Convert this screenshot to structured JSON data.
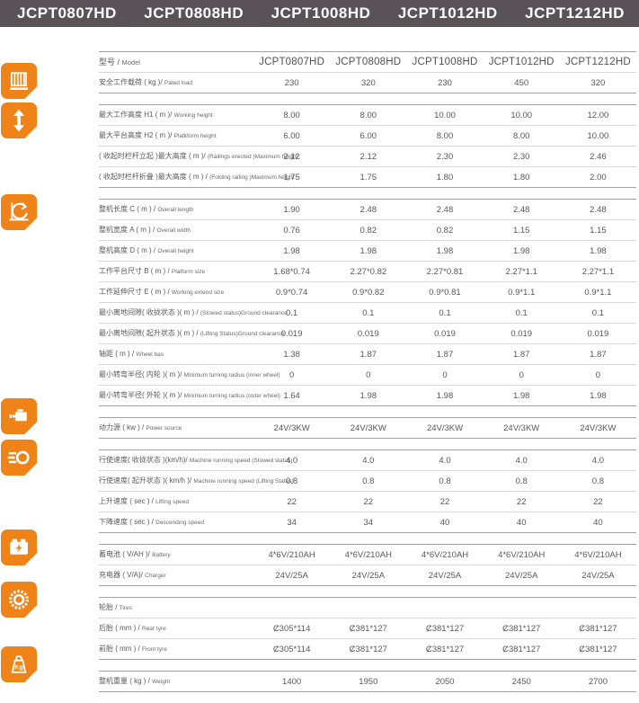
{
  "colors": {
    "accent_orange": "#EF8318",
    "topbar_gray": "#595357"
  },
  "topbar": {
    "models": [
      "JCPT0807HD",
      "JCPT0808HD",
      "JCPT1008HD",
      "JCPT1012HD",
      "JCPT1212HD"
    ]
  },
  "table": {
    "sections": [
      {
        "name": "model-load",
        "icon": "platform-railing-icon",
        "rows": [
          {
            "label_zh": "型号 / ",
            "label_en": "Model",
            "values": [
              "JCPT0807HD",
              "JCPT0808HD",
              "JCPT1008HD",
              "JCPT1012HD",
              "JCPT1212HD"
            ]
          },
          {
            "label_zh": "安全工作载荷 ( kg )/ ",
            "label_en": "Pated load",
            "values": [
              "230",
              "320",
              "230",
              "450",
              "320"
            ]
          }
        ]
      },
      {
        "name": "heights",
        "icon": "height-range-icon",
        "rows": [
          {
            "label_zh": "最大工作高度 H1 ( m )/ ",
            "label_en": "Working height",
            "values": [
              "8.00",
              "8.00",
              "10.00",
              "10.00",
              "12.00"
            ]
          },
          {
            "label_zh": "最大平台高度 H2 ( m )/ ",
            "label_en": "Platkform height",
            "values": [
              "6.00",
              "6.00",
              "8.00",
              "8.00",
              "10.00"
            ]
          },
          {
            "label_zh": "( 收起时栏杆立起 )最大高度 ( m )/ ",
            "label_en": "(Railings erected )Maximum height",
            "values": [
              "2.12",
              "2.12",
              "2.30",
              "2.30",
              "2.46"
            ]
          },
          {
            "label_zh": "( 收起时栏杆折叠 )最大高度 ( m ) / ",
            "label_en": "(Folding railing )Maximum height",
            "values": [
              "1.75",
              "1.75",
              "1.80",
              "1.80",
              "2.00"
            ]
          }
        ]
      },
      {
        "name": "dimensions",
        "icon": "dimensions-icon",
        "rows": [
          {
            "label_zh": "整机长度 C ( m ) / ",
            "label_en": "Overall length",
            "values": [
              "1.90",
              "2.48",
              "2.48",
              "2.48",
              "2.48"
            ]
          },
          {
            "label_zh": "整机宽度 A ( m ) / ",
            "label_en": "Overall width",
            "values": [
              "0.76",
              "0.82",
              "0.82",
              "1.15",
              "1.15"
            ]
          },
          {
            "label_zh": "整机高度 D ( m ) / ",
            "label_en": "Overall height",
            "values": [
              "1.98",
              "1.98",
              "1.98",
              "1.98",
              "1.98"
            ]
          },
          {
            "label_zh": "工作平台尺寸 B ( m ) / ",
            "label_en": "Plalform size",
            "values": [
              "1.68*0.74",
              "2.27*0.82",
              "2.27*0.81",
              "2.27*1.1",
              "2.27*1.1"
            ]
          },
          {
            "label_zh": "工作延伸尺寸 E ( m ) / ",
            "label_en": "Working extend size",
            "values": [
              "0.9*0.74",
              "0.9*0.82",
              "0.9*0.81",
              "0.9*1.1",
              "0.9*1.1"
            ]
          },
          {
            "label_zh": "最小离地间隙( 收拢状态 )( m ) / ",
            "label_en": "(Stowed status)Ground clearance",
            "values": [
              "0.1",
              "0.1",
              "0.1",
              "0.1",
              "0.1"
            ]
          },
          {
            "label_zh": "最小离地间隙( 起升状态 )( m ) / ",
            "label_en": "(Lifting Status)Ground clearance",
            "values": [
              "0.019",
              "0.019",
              "0.019",
              "0.019",
              "0.019"
            ]
          },
          {
            "label_zh": "轴距 ( m ) / ",
            "label_en": "Wheel bas",
            "values": [
              "1.38",
              "1.87",
              "1.87",
              "1.87",
              "1.87"
            ]
          },
          {
            "label_zh": "最小转弯半径( 内轮 )( m )/ ",
            "label_en": "Minimum turning radius (inner wheel)",
            "values": [
              "0",
              "0",
              "0",
              "0",
              "0"
            ]
          },
          {
            "label_zh": "最小转弯半径( 外轮 )( m )/ ",
            "label_en": "Minimum turning radius (outer wheel)",
            "values": [
              "1.64",
              "1.98",
              "1.98",
              "1.98",
              "1.98"
            ]
          }
        ]
      },
      {
        "name": "power",
        "icon": "power-icon",
        "rows": [
          {
            "label_zh": "动力源 ( kw ) / ",
            "label_en": "Power source",
            "values": [
              "24V/3KW",
              "24V/3KW",
              "24V/3KW",
              "24V/3KW",
              "24V/3KW"
            ]
          }
        ]
      },
      {
        "name": "speed",
        "icon": "speed-icon",
        "rows": [
          {
            "label_zh": "行使速度( 收拢状态 )(km/h)/ ",
            "label_en": "Machine running speed (Stowed status)",
            "values": [
              "4.0",
              "4.0",
              "4.0",
              "4.0",
              "4.0"
            ]
          },
          {
            "label_zh": "行使速度( 起升状态 )( km/h )/ ",
            "label_en": "Machine running speed (Lifting Status)",
            "values": [
              "0.8",
              "0.8",
              "0.8",
              "0.8",
              "0.8"
            ]
          },
          {
            "label_zh": "上升速度 ( sec ) / ",
            "label_en": "Lifting speed",
            "values": [
              "22",
              "22",
              "22",
              "22",
              "22"
            ]
          },
          {
            "label_zh": "下降速度 ( sec ) / ",
            "label_en": "Descending speed",
            "values": [
              "34",
              "34",
              "40",
              "40",
              "40"
            ]
          }
        ]
      },
      {
        "name": "battery",
        "icon": "battery-icon",
        "rows": [
          {
            "label_zh": "蓄电池 ( V/AH )/ ",
            "label_en": "Battery",
            "values": [
              "4*6V/210AH",
              "4*6V/210AH",
              "4*6V/210AH",
              "4*6V/210AH",
              "4*6V/210AH"
            ]
          },
          {
            "label_zh": "充电器 ( V/A)/ ",
            "label_en": "Charger",
            "values": [
              "24V/25A",
              "24V/25A",
              "24V/25A",
              "24V/25A",
              "24V/25A"
            ]
          }
        ]
      },
      {
        "name": "tires",
        "icon": "tire-icon",
        "rows": [
          {
            "label_zh": "轮胎 / ",
            "label_en": "Tires",
            "values": [
              "",
              "",
              "",
              "",
              ""
            ]
          },
          {
            "label_zh": "后胎 ( mm ) / ",
            "label_en": "Rear tyre",
            "values": [
              "Ȼ305*114",
              "Ȼ381*127",
              "Ȼ381*127",
              "Ȼ381*127",
              "Ȼ381*127"
            ]
          },
          {
            "label_zh": "前胎 ( mm ) / ",
            "label_en": "Front tyre",
            "values": [
              "Ȼ305*114",
              "Ȼ381*127",
              "Ȼ381*127",
              "Ȼ381*127",
              "Ȼ381*127"
            ]
          }
        ]
      },
      {
        "name": "weight",
        "icon": "weight-icon",
        "rows": [
          {
            "label_zh": "整机重量 ( kg ) / ",
            "label_en": "Weight",
            "values": [
              "1400",
              "1950",
              "2050",
              "2450",
              "2700"
            ]
          }
        ]
      }
    ]
  }
}
